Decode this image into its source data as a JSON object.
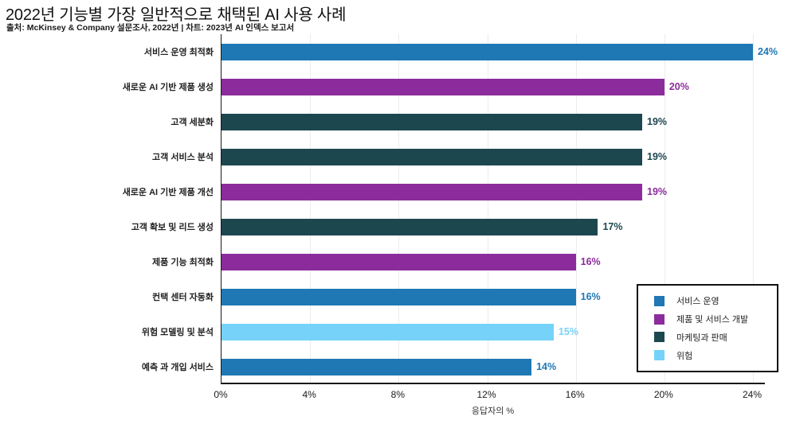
{
  "header": {
    "title": "2022년 기능별 가장 일반적으로 채택된 AI 사용 사례",
    "source_line": "출처: McKinsey & Company 설문조사, 2022년 | 차트: 2023년 AI 인덱스 보고서"
  },
  "chart_data": {
    "type": "bar",
    "orientation": "horizontal",
    "title": "2022년 기능별 가장 일반적으로 채택된 AI 사용 사례",
    "categories": [
      "서비스 운영 최적화",
      "새로운 AI 기반 제품 생성",
      "고객 세분화",
      "고객 서비스 분석",
      "새로운 AI 기반 제품 개선",
      "고객 확보 및 리드 생성",
      "제품 기능 최적화",
      "컨택 센터 자동화",
      "위험 모델링 및 분석",
      "예측 과 개입 서비스"
    ],
    "values": [
      24,
      20,
      19,
      19,
      19,
      17,
      16,
      16,
      15,
      14
    ],
    "value_labels": [
      "24%",
      "20%",
      "19%",
      "19%",
      "19%",
      "17%",
      "16%",
      "16%",
      "15%",
      "14%"
    ],
    "bar_groups": [
      "service_ops",
      "product_dev",
      "marketing_sales",
      "marketing_sales",
      "product_dev",
      "marketing_sales",
      "product_dev",
      "service_ops",
      "risk",
      "service_ops"
    ],
    "group_colors": {
      "service_ops": "#1f77b4",
      "product_dev": "#8c2c9c",
      "marketing_sales": "#1d474f",
      "risk": "#76d2f8"
    },
    "legend": [
      {
        "key": "service_ops",
        "label": "서비스 운영",
        "color": "#1f77b4"
      },
      {
        "key": "product_dev",
        "label": "제품 및 서비스 개발",
        "color": "#8c2c9c"
      },
      {
        "key": "marketing_sales",
        "label": "마케팅과 판매",
        "color": "#1d474f"
      },
      {
        "key": "risk",
        "label": "위험",
        "color": "#76d2f8"
      }
    ],
    "legend_position": "lower right, boxed",
    "xlabel": "응답자의 %",
    "x_ticks": [
      0,
      4,
      8,
      12,
      16,
      20,
      24
    ],
    "x_tick_labels": [
      "0%",
      "4%",
      "8%",
      "12%",
      "16%",
      "20%",
      "24%"
    ],
    "xlim": [
      0,
      24
    ],
    "grid": "vertical, light gray"
  }
}
